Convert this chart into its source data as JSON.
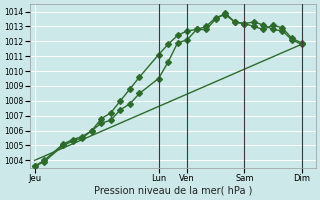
{
  "xlabel": "Pression niveau de la mer( hPa )",
  "bg_color": "#cce8e8",
  "grid_color": "#ffffff",
  "line_color": "#2d6b2d",
  "ylim": [
    1003.5,
    1014.5
  ],
  "yticks": [
    1004,
    1005,
    1006,
    1007,
    1008,
    1009,
    1010,
    1011,
    1012,
    1013,
    1014
  ],
  "day_labels": [
    "Jeu",
    "Lun",
    "Ven",
    "Sam",
    "Dim"
  ],
  "day_x": [
    0,
    13,
    16,
    22,
    28
  ],
  "vline_x": [
    13,
    16,
    22,
    28
  ],
  "xlim": [
    -0.5,
    29.5
  ],
  "series1_x": [
    0,
    1,
    3,
    4,
    5,
    6,
    7,
    8,
    9,
    10,
    11,
    13,
    14,
    15,
    16,
    17,
    18,
    19,
    20,
    21,
    22,
    23,
    24,
    25,
    26,
    27,
    28
  ],
  "series1_y": [
    1003.6,
    1004.0,
    1005.1,
    1005.4,
    1005.6,
    1006.0,
    1006.8,
    1007.2,
    1008.0,
    1008.8,
    1009.6,
    1011.1,
    1011.8,
    1012.4,
    1012.7,
    1012.8,
    1013.0,
    1013.6,
    1013.8,
    1013.3,
    1013.2,
    1013.3,
    1013.1,
    1012.8,
    1012.7,
    1012.1,
    1011.8
  ],
  "series2_x": [
    0,
    1,
    3,
    4,
    5,
    6,
    7,
    8,
    9,
    10,
    11,
    13,
    14,
    15,
    16,
    17,
    18,
    19,
    20,
    21,
    22,
    23,
    24,
    25,
    26,
    27,
    28
  ],
  "series2_y": [
    1003.6,
    1003.9,
    1005.0,
    1005.3,
    1005.5,
    1006.0,
    1006.5,
    1006.7,
    1007.4,
    1007.8,
    1008.5,
    1009.5,
    1010.6,
    1011.9,
    1012.1,
    1012.8,
    1012.8,
    1013.5,
    1013.9,
    1013.3,
    1013.2,
    1013.0,
    1012.8,
    1013.1,
    1012.9,
    1012.2,
    1011.9
  ],
  "series3_x": [
    0,
    28
  ],
  "series3_y": [
    1004.0,
    1011.8
  ],
  "marker_size": 3,
  "line_width": 1.0
}
